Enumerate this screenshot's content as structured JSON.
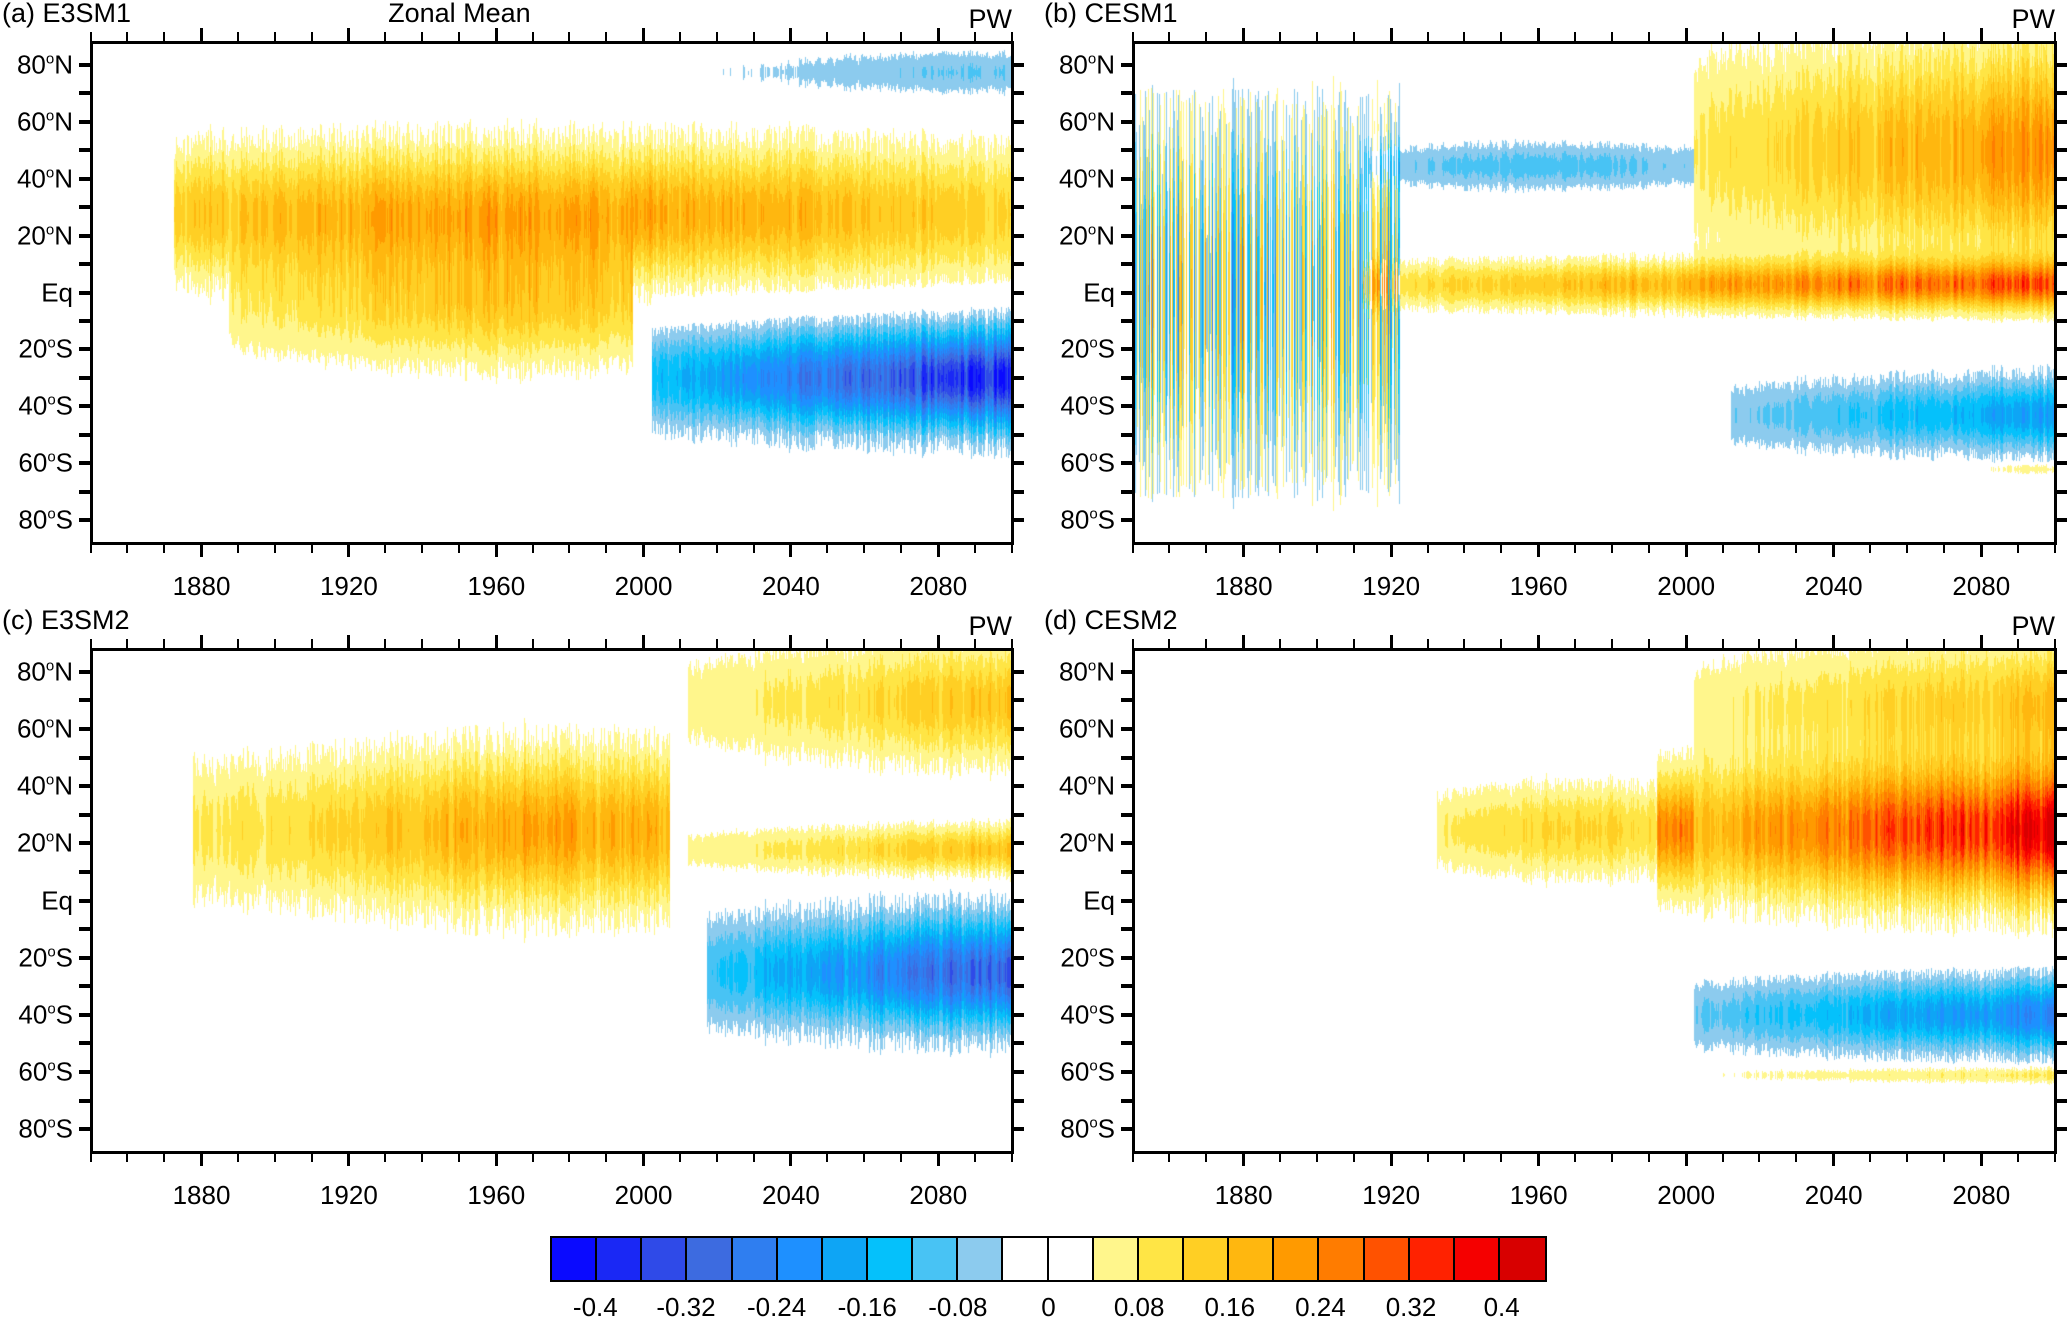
{
  "figure": {
    "colorbar": {
      "levels": [
        -0.4,
        -0.36,
        -0.32,
        -0.28,
        -0.24,
        -0.2,
        -0.16,
        -0.12,
        -0.08,
        -0.04,
        0,
        0.04,
        0.08,
        0.12,
        0.16,
        0.2,
        0.24,
        0.28,
        0.32,
        0.36,
        0.4
      ],
      "colors": [
        "#0a0aff",
        "#1a28f5",
        "#2f4ae8",
        "#3d6be0",
        "#2f7ef0",
        "#1e90ff",
        "#0ea5f5",
        "#05c1fb",
        "#48c3f4",
        "#8ccbee",
        "#ffffff",
        "#ffffff",
        "#fff68c",
        "#ffe545",
        "#ffcf24",
        "#ffb70f",
        "#ff9a00",
        "#ff7c00",
        "#ff5200",
        "#ff2200",
        "#f50000",
        "#d80000"
      ],
      "tick_labels": [
        "-0.4",
        "-0.32",
        "-0.24",
        "-0.16",
        "-0.08",
        "0",
        "0.08",
        "0.16",
        "0.24",
        "0.32",
        "0.4"
      ],
      "tick_values": [
        -0.4,
        -0.32,
        -0.24,
        -0.16,
        -0.08,
        0,
        0.08,
        0.16,
        0.24,
        0.32,
        0.4
      ]
    }
  },
  "chart_data": [
    {
      "type": "heatmap",
      "panel": "(a)",
      "title": "E3SM1",
      "center_title": "Zonal Mean",
      "variable": "PW",
      "xlabel": "",
      "ylabel": "",
      "xlim": [
        1850,
        2100
      ],
      "ylim": [
        -88,
        88
      ],
      "xticks": [
        1880,
        1920,
        1960,
        2000,
        2040,
        2080
      ],
      "xtick_labels": [
        "1880",
        "1920",
        "1960",
        "2000",
        "2040",
        "2080"
      ],
      "yticks": [
        80,
        60,
        40,
        20,
        0,
        -20,
        -40,
        -60,
        -80
      ],
      "ytick_labels": [
        [
          "80",
          "N"
        ],
        [
          "60",
          "N"
        ],
        [
          "40",
          "N"
        ],
        [
          "20",
          "N"
        ],
        [
          "Eq",
          ""
        ],
        [
          "20",
          "S"
        ],
        [
          "40",
          "S"
        ],
        [
          "60",
          "S"
        ],
        [
          "80",
          "S"
        ]
      ],
      "features": [
        {
          "year_range": [
            1880,
            2100
          ],
          "lat_center": 28,
          "lat_width": 22,
          "peak": 0.2,
          "peak_year": 1978,
          "note": "NH subtropical positive band, max ~0.2 near 1970-1990 at 30N"
        },
        {
          "year_range": [
            1895,
            1995
          ],
          "lat_center": -5,
          "lat_width": 20,
          "peak": 0.13,
          "peak_year": 1965,
          "note": "tropical positive band"
        },
        {
          "year_range": [
            2010,
            2100
          ],
          "lat_center": -30,
          "lat_width": 16,
          "peak": -0.4,
          "peak_year": 2100,
          "note": "SH negative band, strongest ~-0.4 at 20-40S by 2100"
        },
        {
          "year_range": [
            2020,
            2100
          ],
          "lat_center": 78,
          "lat_width": 8,
          "peak": -0.08,
          "peak_year": 2090,
          "note": "weak negative Arctic streaks"
        }
      ]
    },
    {
      "type": "heatmap",
      "panel": "(b)",
      "title": "CESM1",
      "center_title": "",
      "variable": "PW",
      "xlim": [
        1850,
        2100
      ],
      "ylim": [
        -88,
        88
      ],
      "xticks": [
        1880,
        1920,
        1960,
        2000,
        2040,
        2080
      ],
      "xtick_labels": [
        "1880",
        "1920",
        "1960",
        "2000",
        "2040",
        "2080"
      ],
      "yticks": [
        80,
        60,
        40,
        20,
        0,
        -20,
        -40,
        -60,
        -80
      ],
      "ytick_labels": [
        [
          "80",
          "N"
        ],
        [
          "60",
          "N"
        ],
        [
          "40",
          "N"
        ],
        [
          "20",
          "N"
        ],
        [
          "Eq",
          ""
        ],
        [
          "20",
          "S"
        ],
        [
          "40",
          "S"
        ],
        [
          "60",
          "S"
        ],
        [
          "80",
          "S"
        ]
      ],
      "features": [
        {
          "year_range": [
            1850,
            1920
          ],
          "lat_center": 0,
          "lat_width": 60,
          "peak": 0.16,
          "peak_year": 1890,
          "note": "noisy alternating positive/negative vertical streaks"
        },
        {
          "year_range": [
            1920,
            2000
          ],
          "lat_center": 45,
          "lat_width": 8,
          "peak": -0.1,
          "peak_year": 1960,
          "note": "NH midlatitude negative band"
        },
        {
          "year_range": [
            1920,
            2100
          ],
          "lat_center": 3,
          "lat_width": 8,
          "peak": 0.28,
          "peak_year": 2100,
          "note": "equatorial positive band"
        },
        {
          "year_range": [
            2010,
            2100
          ],
          "lat_center": 50,
          "lat_width": 35,
          "peak": 0.24,
          "peak_year": 2100,
          "note": "NH positive expanding"
        },
        {
          "year_range": [
            2020,
            2100
          ],
          "lat_center": -43,
          "lat_width": 12,
          "peak": -0.2,
          "peak_year": 2100,
          "note": "SH negative band"
        },
        {
          "year_range": [
            2080,
            2100
          ],
          "lat_center": -62,
          "lat_width": 2,
          "peak": 0.08,
          "peak_year": 2095,
          "note": "weak positive 60S"
        }
      ]
    },
    {
      "type": "heatmap",
      "panel": "(c)",
      "title": "E3SM2",
      "center_title": "",
      "variable": "PW",
      "xlim": [
        1850,
        2100
      ],
      "ylim": [
        -88,
        88
      ],
      "xticks": [
        1880,
        1920,
        1960,
        2000,
        2040,
        2080
      ],
      "xtick_labels": [
        "1880",
        "1920",
        "1960",
        "2000",
        "2040",
        "2080"
      ],
      "yticks": [
        80,
        60,
        40,
        20,
        0,
        -20,
        -40,
        -60,
        -80
      ],
      "ytick_labels": [
        [
          "80",
          "N"
        ],
        [
          "60",
          "N"
        ],
        [
          "40",
          "N"
        ],
        [
          "20",
          "N"
        ],
        [
          "Eq",
          ""
        ],
        [
          "20",
          "S"
        ],
        [
          "40",
          "S"
        ],
        [
          "60",
          "S"
        ],
        [
          "80",
          "S"
        ]
      ],
      "features": [
        {
          "year_range": [
            1885,
            2005
          ],
          "lat_center": 25,
          "lat_width": 25,
          "peak": 0.2,
          "peak_year": 1980,
          "note": "broad NH/tropical positive band"
        },
        {
          "year_range": [
            2020,
            2100
          ],
          "lat_center": 70,
          "lat_width": 20,
          "peak": 0.16,
          "peak_year": 2100,
          "note": "Arctic positive"
        },
        {
          "year_range": [
            2020,
            2100
          ],
          "lat_center": 18,
          "lat_width": 8,
          "peak": 0.16,
          "peak_year": 2100,
          "note": "NH subtropical positive"
        },
        {
          "year_range": [
            2025,
            2100
          ],
          "lat_center": -25,
          "lat_width": 18,
          "peak": -0.32,
          "peak_year": 2100,
          "note": "SH negative band"
        }
      ]
    },
    {
      "type": "heatmap",
      "panel": "(d)",
      "title": "CESM2",
      "center_title": "",
      "variable": "PW",
      "xlim": [
        1850,
        2100
      ],
      "ylim": [
        -88,
        88
      ],
      "xticks": [
        1880,
        1920,
        1960,
        2000,
        2040,
        2080
      ],
      "xtick_labels": [
        "1880",
        "1920",
        "1960",
        "2000",
        "2040",
        "2080"
      ],
      "yticks": [
        80,
        60,
        40,
        20,
        0,
        -20,
        -40,
        -60,
        -80
      ],
      "ytick_labels": [
        [
          "80",
          "N"
        ],
        [
          "60",
          "N"
        ],
        [
          "40",
          "N"
        ],
        [
          "20",
          "N"
        ],
        [
          "Eq",
          ""
        ],
        [
          "20",
          "S"
        ],
        [
          "40",
          "S"
        ],
        [
          "60",
          "S"
        ],
        [
          "80",
          "S"
        ]
      ],
      "features": [
        {
          "year_range": [
            1940,
            2000
          ],
          "lat_center": 25,
          "lat_width": 15,
          "peak": 0.13,
          "peak_year": 1970,
          "note": "moderate positive band"
        },
        {
          "year_range": [
            2000,
            2100
          ],
          "lat_center": 25,
          "lat_width": 22,
          "peak": 0.4,
          "peak_year": 2100,
          "note": "strong NH positive, peak ~0.4 near 30N by 2100"
        },
        {
          "year_range": [
            2010,
            2100
          ],
          "lat_center": 70,
          "lat_width": 20,
          "peak": 0.16,
          "peak_year": 2100,
          "note": "Arctic positive"
        },
        {
          "year_range": [
            2010,
            2100
          ],
          "lat_center": -40,
          "lat_width": 12,
          "peak": -0.24,
          "peak_year": 2100,
          "note": "SH negative band"
        },
        {
          "year_range": [
            2010,
            2100
          ],
          "lat_center": -61,
          "lat_width": 3,
          "peak": 0.1,
          "peak_year": 2100,
          "note": "weak positive near 60S"
        }
      ]
    }
  ]
}
